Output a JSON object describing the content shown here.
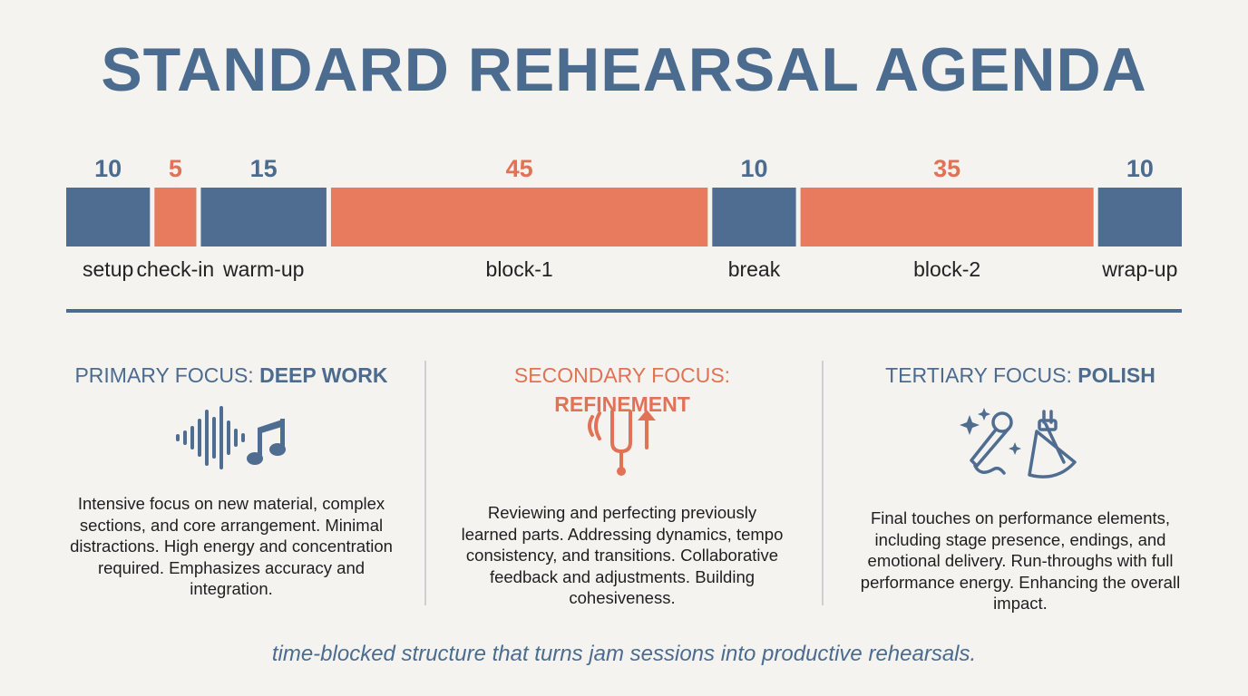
{
  "title": "STANDARD REHEARSAL AGENDA",
  "colors": {
    "blue": "#4f6d91",
    "orange": "#e87a5d",
    "text_blue": "#4b6b8f"
  },
  "chart_data": {
    "type": "bar",
    "orientation": "horizontal-stacked",
    "title": "",
    "xlabel": "",
    "ylabel": "",
    "categories": [
      "setup",
      "check-in",
      "warm-up",
      "block-1",
      "break",
      "block-2",
      "wrap-up"
    ],
    "values": [
      10,
      5,
      15,
      45,
      10,
      35,
      10
    ],
    "colors": [
      "#4f6d91",
      "#e87a5d",
      "#4f6d91",
      "#e87a5d",
      "#4f6d91",
      "#e87a5d",
      "#4f6d91"
    ],
    "value_colors": [
      "#4b6b8f",
      "#e07255",
      "#4b6b8f",
      "#e07255",
      "#4b6b8f",
      "#e07255",
      "#4b6b8f"
    ]
  },
  "focus": [
    {
      "prefix": "PRIMARY FOCUS: ",
      "emphasis": "DEEP WORK",
      "icon": "soundwave-music-note-icon",
      "color": "#4b6b8f",
      "text": "Intensive focus on new material, complex sections, and core arrangement. Minimal distractions. High energy and concentration required. Emphasizes accuracy and integration."
    },
    {
      "prefix": "SECONDARY FOCUS: ",
      "emphasis": "REFINEMENT",
      "icon": "tuning-fork-icon",
      "color": "#e07255",
      "text": "Reviewing and perfecting previously learned parts. Addressing dynamics, tempo consistency, and transitions. Collaborative feedback and adjustments. Building cohesiveness."
    },
    {
      "prefix": "TERTIARY FOCUS: ",
      "emphasis": "POLISH",
      "icon": "microphone-spotlight-icon",
      "color": "#4b6b8f",
      "text": "Final touches on performance elements, including stage presence, endings, and emotional delivery. Run-throughs with full performance energy. Enhancing the overall impact."
    }
  ],
  "caption": "time-blocked structure that turns jam sessions into productive rehearsals."
}
